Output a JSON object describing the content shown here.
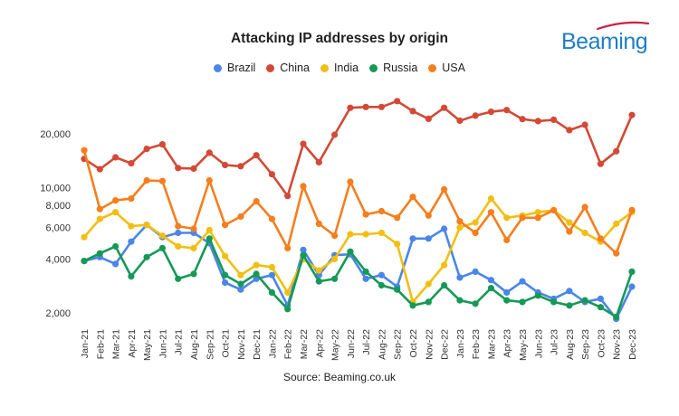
{
  "header": {
    "title": "Attacking IP addresses by origin",
    "logo_text": "Beaming"
  },
  "footer": {
    "source": "Source: Beaming.co.uk"
  },
  "chart_data": {
    "type": "line",
    "title": "Attacking IP addresses by origin",
    "xlabel": "",
    "ylabel": "",
    "yscale": "log",
    "ylim": [
      1800,
      35000
    ],
    "yticks": [
      2000,
      4000,
      6000,
      8000,
      10000,
      20000
    ],
    "ytick_labels": [
      "2,000",
      "4,000",
      "6,000",
      "8,000",
      "10,000",
      "20,000"
    ],
    "grid": false,
    "legend_position": "top",
    "categories": [
      "Jan-21",
      "Feb-21",
      "Mar-21",
      "Apr-21",
      "May-21",
      "Jun-21",
      "Jul-21",
      "Aug-21",
      "Sep-21",
      "Oct-21",
      "Nov-21",
      "Dec-21",
      "Jan-22",
      "Feb-22",
      "Mar-22",
      "Apr-22",
      "May-22",
      "Jun-22",
      "Jul-22",
      "Aug-22",
      "Sep-22",
      "Oct-22",
      "Nov-22",
      "Dec-22",
      "Jan-23",
      "Feb-23",
      "Mar-23",
      "Apr-23",
      "May-23",
      "Jun-23",
      "Jul-23",
      "Aug-23",
      "Sep-23",
      "Oct-23",
      "Nov-23",
      "Dec-23"
    ],
    "tick_labels": [
      "Jan-21",
      "Feb-21",
      "Mar-21",
      "Apr-21",
      "May-21",
      "Jun-21",
      "Jul-21",
      "Aug-21",
      "Sep-21",
      "Oct-21",
      "Nov-21",
      "Dec-21",
      "Jan-22",
      "Feb-22",
      "Mar-22",
      "Apr-22",
      "May-22",
      "Jun-22",
      "Jul-22",
      "Aug-22",
      "Sep-22",
      "Oct-22",
      "Nov-22",
      "Dec-22",
      "Jan-23",
      "Feb-23",
      "Mar-23",
      "Apr-23",
      "May-23",
      "Jun-23",
      "Jul-23",
      "Aug-23",
      "Sep-23",
      "Oct-23",
      "Nov-23",
      "Dec-23"
    ],
    "series": [
      {
        "name": "Brazil",
        "color": "#4a86e8",
        "values": [
          3900,
          4100,
          3750,
          5000,
          6200,
          5300,
          5600,
          5600,
          4900,
          2950,
          2700,
          3100,
          3250,
          2200,
          4500,
          3250,
          4200,
          4250,
          3100,
          3250,
          2800,
          5200,
          5200,
          5900,
          3150,
          3400,
          3050,
          2600,
          3000,
          2600,
          2400,
          2650,
          2300,
          2400,
          1850,
          2800
        ]
      },
      {
        "name": "China",
        "color": "#d24a36",
        "values": [
          14500,
          12700,
          14800,
          13700,
          16500,
          17500,
          12900,
          12800,
          15700,
          13400,
          13200,
          15200,
          11900,
          9000,
          17600,
          13900,
          19800,
          28000,
          28300,
          28300,
          30500,
          26800,
          24300,
          28000,
          23700,
          25300,
          26600,
          27200,
          24200,
          23600,
          24000,
          21000,
          22500,
          13600,
          16000,
          25500
        ]
      },
      {
        "name": "India",
        "color": "#f1bf12",
        "values": [
          5300,
          6700,
          7300,
          6100,
          6200,
          5400,
          4700,
          4600,
          5800,
          4150,
          3250,
          3700,
          3600,
          2600,
          4000,
          3450,
          4000,
          5500,
          5500,
          5600,
          4850,
          2300,
          2900,
          3700,
          6000,
          6400,
          8700,
          6800,
          7000,
          7300,
          7500,
          6400,
          5600,
          5000,
          6300,
          7300
        ]
      },
      {
        "name": "Russia",
        "color": "#169956",
        "values": [
          3900,
          4300,
          4700,
          3200,
          4100,
          4600,
          3100,
          3300,
          5200,
          3250,
          2900,
          3300,
          2600,
          2100,
          4200,
          3000,
          3100,
          4400,
          3400,
          2850,
          2700,
          2200,
          2300,
          2850,
          2350,
          2250,
          2750,
          2350,
          2300,
          2500,
          2300,
          2200,
          2350,
          2150,
          1900,
          3400
        ]
      },
      {
        "name": "USA",
        "color": "#f57e1d",
        "values": [
          16200,
          7600,
          8500,
          8700,
          11000,
          10900,
          6100,
          5900,
          11000,
          6200,
          6900,
          8400,
          6700,
          4600,
          10200,
          6300,
          5400,
          10800,
          7100,
          7400,
          6800,
          8900,
          7000,
          9800,
          6500,
          5600,
          7300,
          5100,
          6800,
          6800,
          7500,
          5700,
          7800,
          5200,
          4300,
          7500
        ]
      }
    ]
  }
}
